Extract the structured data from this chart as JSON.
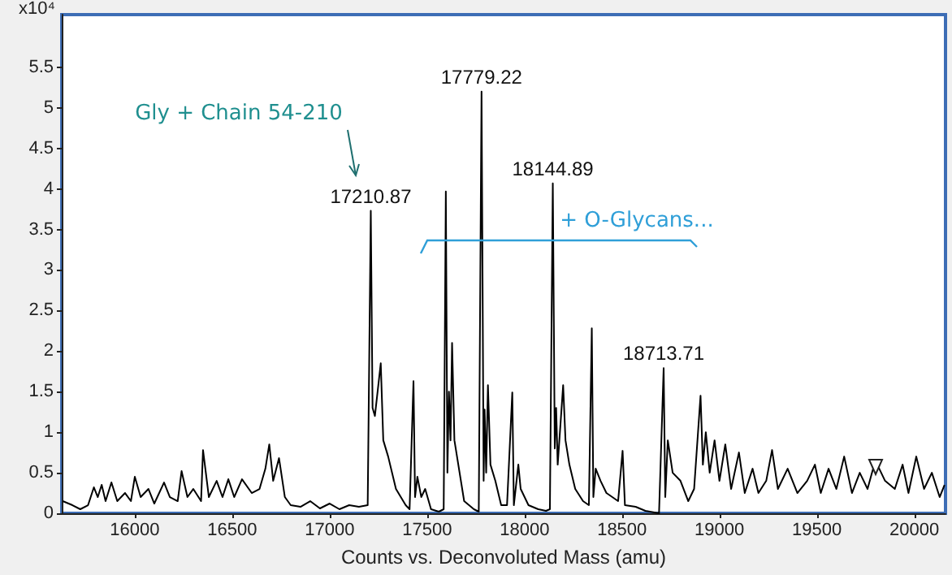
{
  "chart_data": {
    "type": "line",
    "xlabel": "Counts vs. Deconvoluted Mass (amu)",
    "ylabel": "x10⁴",
    "xlim": [
      15625,
      20160
    ],
    "xticks": [
      16000,
      16500,
      17000,
      17500,
      18000,
      18500,
      19000,
      19500,
      20000
    ],
    "ylim": [
      0,
      6.15
    ],
    "yticks": [
      0,
      0.5,
      1,
      1.5,
      2,
      2.5,
      3,
      3.5,
      4,
      4.5,
      5,
      5.5
    ],
    "grid": false,
    "marker": "none",
    "line_style": "solid",
    "series": [
      {
        "color": "#000000",
        "x": [
          15630,
          15680,
          15720,
          15760,
          15790,
          15810,
          15830,
          15850,
          15880,
          15910,
          15950,
          15980,
          16000,
          16030,
          16070,
          16100,
          16150,
          16180,
          16220,
          16240,
          16270,
          16300,
          16340,
          16350,
          16380,
          16420,
          16450,
          16480,
          16510,
          16550,
          16600,
          16640,
          16670,
          16690,
          16710,
          16740,
          16770,
          16800,
          16850,
          16900,
          16950,
          17000,
          17050,
          17100,
          17150,
          17195,
          17210.87,
          17220,
          17232,
          17262,
          17275,
          17300,
          17340,
          17390,
          17410,
          17430,
          17438,
          17450,
          17470,
          17490,
          17520,
          17560,
          17585,
          17596,
          17604,
          17612,
          17620,
          17628,
          17640,
          17660,
          17690,
          17740,
          17765,
          17779.22,
          17790,
          17795,
          17803,
          17812,
          17825,
          17850,
          17880,
          17910,
          17937,
          17945,
          17968,
          17980,
          18020,
          18070,
          18110,
          18130,
          18144.89,
          18155,
          18162,
          18170,
          18198,
          18210,
          18230,
          18260,
          18300,
          18330,
          18345,
          18353,
          18365,
          18390,
          18420,
          18450,
          18480,
          18503,
          18515,
          18570,
          18620,
          18690,
          18713.71,
          18722,
          18735,
          18760,
          18800,
          18840,
          18870,
          18903,
          18915,
          18930,
          18950,
          18975,
          19000,
          19030,
          19060,
          19100,
          19130,
          19170,
          19200,
          19240,
          19270,
          19300,
          19350,
          19400,
          19450,
          19490,
          19520,
          19560,
          19600,
          19640,
          19680,
          19720,
          19760,
          19800,
          19850,
          19900,
          19940,
          19970,
          20010,
          20050,
          20090,
          20130,
          20155
        ],
        "values": [
          0.15,
          0.1,
          0.05,
          0.1,
          0.32,
          0.2,
          0.35,
          0.15,
          0.38,
          0.15,
          0.25,
          0.15,
          0.45,
          0.2,
          0.3,
          0.12,
          0.38,
          0.2,
          0.15,
          0.52,
          0.2,
          0.3,
          0.15,
          0.78,
          0.2,
          0.4,
          0.2,
          0.42,
          0.2,
          0.42,
          0.25,
          0.3,
          0.55,
          0.85,
          0.4,
          0.68,
          0.2,
          0.1,
          0.08,
          0.15,
          0.06,
          0.12,
          0.05,
          0.1,
          0.08,
          0.1,
          3.73,
          1.3,
          1.2,
          1.85,
          0.9,
          0.7,
          0.3,
          0.1,
          0.05,
          1.63,
          0.2,
          0.45,
          0.2,
          0.3,
          0.05,
          0.02,
          0.05,
          3.97,
          0.5,
          1.5,
          0.9,
          2.1,
          0.9,
          0.6,
          0.15,
          0.05,
          0.02,
          5.2,
          0.4,
          1.28,
          0.5,
          1.58,
          0.6,
          0.4,
          0.1,
          0.1,
          1.49,
          0.1,
          0.6,
          0.3,
          0.1,
          0.05,
          0.03,
          0.05,
          4.07,
          0.8,
          1.3,
          0.6,
          1.58,
          0.9,
          0.6,
          0.3,
          0.15,
          0.1,
          2.28,
          0.2,
          0.55,
          0.4,
          0.25,
          0.2,
          0.15,
          0.77,
          0.1,
          0.08,
          0.03,
          0.0,
          1.79,
          0.2,
          0.9,
          0.5,
          0.4,
          0.15,
          0.3,
          1.45,
          0.6,
          1.0,
          0.5,
          0.9,
          0.4,
          0.85,
          0.3,
          0.75,
          0.25,
          0.55,
          0.25,
          0.4,
          0.78,
          0.3,
          0.55,
          0.25,
          0.4,
          0.6,
          0.25,
          0.55,
          0.3,
          0.7,
          0.25,
          0.5,
          0.3,
          0.65,
          0.4,
          0.3,
          0.6,
          0.25,
          0.7,
          0.3,
          0.5,
          0.2,
          0.35
        ]
      }
    ],
    "annotations": [
      {
        "text": "17210.87",
        "x": 17210.87,
        "y": 3.73
      },
      {
        "text": "17779.22",
        "x": 17779.22,
        "y": 5.2
      },
      {
        "text": "18144.89",
        "x": 18144.89,
        "y": 4.07
      },
      {
        "text": "18713.71",
        "x": 18713.71,
        "y": 1.79
      },
      "Gly + Chain 54-210",
      "+ O-Glycans..."
    ]
  }
}
